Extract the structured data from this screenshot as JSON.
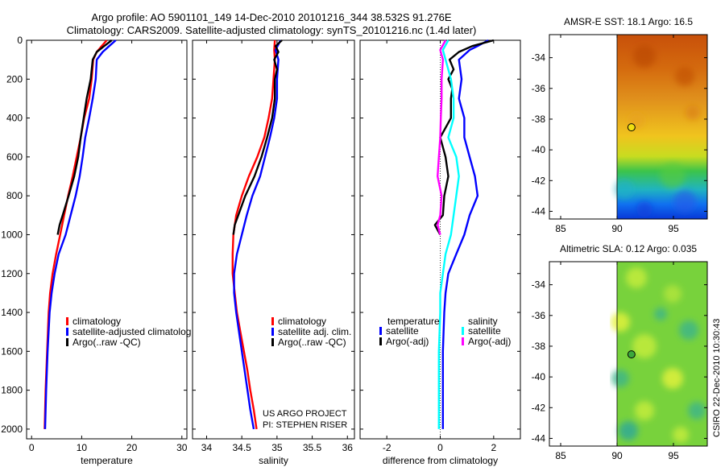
{
  "header": {
    "title_line1": "Argo profile: AO 5901101_149 14-Dec-2010 20101216_344 38.532S 91.276E",
    "title_line2": "Climatology: CARS2009. Satellite-adjusted climatology: synTS_20101216.nc (1.4d later)"
  },
  "credit": "CSIRO 22-Dec-2010 10:30:43",
  "project_text": [
    "US ARGO PROJECT",
    "PI: STEPHEN RISER"
  ],
  "colors": {
    "red": "#ff0000",
    "blue": "#0000ff",
    "black": "#000000",
    "cyan": "#00ffff",
    "magenta": "#ff00ff"
  },
  "chart_data": [
    {
      "type": "line",
      "xlabel": "temperature",
      "ylabel": "",
      "xlim": [
        -1,
        31
      ],
      "ylim": [
        0,
        2050
      ],
      "y_inverted": true,
      "xticks": [
        0,
        10,
        20,
        30
      ],
      "yticks": [
        0,
        200,
        400,
        600,
        800,
        1000,
        1200,
        1400,
        1600,
        1800,
        2000
      ],
      "legend": [
        "climatology",
        "satellite-adjusted climatolog",
        "Argo(..raw -QC)"
      ],
      "legend_colors": [
        "red",
        "blue",
        "black"
      ],
      "series": [
        {
          "name": "climatology",
          "color": "red",
          "points": [
            [
              15.0,
              0
            ],
            [
              14.0,
              30
            ],
            [
              13.0,
              60
            ],
            [
              12.3,
              100
            ],
            [
              12.0,
              200
            ],
            [
              11.5,
              300
            ],
            [
              10.5,
              400
            ],
            [
              9.8,
              500
            ],
            [
              9.0,
              600
            ],
            [
              8.2,
              700
            ],
            [
              7.3,
              800
            ],
            [
              6.5,
              900
            ],
            [
              5.7,
              1000
            ],
            [
              4.9,
              1100
            ],
            [
              4.2,
              1200
            ],
            [
              3.7,
              1300
            ],
            [
              3.4,
              1400
            ],
            [
              3.1,
              1600
            ],
            [
              2.8,
              1800
            ],
            [
              2.6,
              2000
            ]
          ]
        },
        {
          "name": "satellite-adjusted climatolog",
          "color": "blue",
          "points": [
            [
              16.8,
              0
            ],
            [
              15.5,
              30
            ],
            [
              14.2,
              60
            ],
            [
              13.0,
              100
            ],
            [
              12.8,
              200
            ],
            [
              12.2,
              300
            ],
            [
              11.5,
              400
            ],
            [
              10.7,
              500
            ],
            [
              10.2,
              600
            ],
            [
              9.6,
              700
            ],
            [
              8.8,
              800
            ],
            [
              7.8,
              900
            ],
            [
              6.8,
              1000
            ],
            [
              5.4,
              1100
            ],
            [
              4.6,
              1200
            ],
            [
              4.0,
              1300
            ],
            [
              3.6,
              1400
            ],
            [
              3.2,
              1600
            ],
            [
              2.9,
              1800
            ],
            [
              2.7,
              2000
            ]
          ]
        },
        {
          "name": "Argo(..raw -QC)",
          "color": "black",
          "points": [
            [
              16.0,
              0
            ],
            [
              14.5,
              30
            ],
            [
              13.0,
              60
            ],
            [
              12.2,
              100
            ],
            [
              11.8,
              200
            ],
            [
              11.0,
              300
            ],
            [
              10.4,
              400
            ],
            [
              9.8,
              500
            ],
            [
              9.3,
              600
            ],
            [
              8.5,
              700
            ],
            [
              7.4,
              800
            ],
            [
              6.2,
              900
            ],
            [
              5.6,
              950
            ],
            [
              5.2,
              1000
            ]
          ]
        }
      ]
    },
    {
      "type": "line",
      "xlabel": "salinity",
      "xlim": [
        33.8,
        36.1
      ],
      "ylim": [
        0,
        2050
      ],
      "y_inverted": true,
      "xticks": [
        34,
        34.5,
        35,
        35.5,
        36
      ],
      "legend": [
        "climatology",
        "satellite adj. clim.",
        "Argo(..raw -QC)"
      ],
      "legend_colors": [
        "red",
        "blue",
        "black"
      ],
      "series": [
        {
          "name": "climatology",
          "color": "red",
          "points": [
            [
              34.97,
              0
            ],
            [
              34.96,
              50
            ],
            [
              34.97,
              100
            ],
            [
              34.95,
              200
            ],
            [
              34.93,
              300
            ],
            [
              34.88,
              400
            ],
            [
              34.82,
              500
            ],
            [
              34.72,
              600
            ],
            [
              34.6,
              700
            ],
            [
              34.5,
              800
            ],
            [
              34.42,
              900
            ],
            [
              34.38,
              1000
            ],
            [
              34.37,
              1100
            ],
            [
              34.37,
              1200
            ],
            [
              34.4,
              1300
            ],
            [
              34.43,
              1400
            ],
            [
              34.48,
              1500
            ],
            [
              34.53,
              1600
            ],
            [
              34.58,
              1700
            ],
            [
              34.62,
              1800
            ],
            [
              34.67,
              1900
            ],
            [
              34.71,
              2000
            ]
          ]
        },
        {
          "name": "satellite adj. clim.",
          "color": "blue",
          "points": [
            [
              35.05,
              0
            ],
            [
              34.98,
              50
            ],
            [
              35.02,
              100
            ],
            [
              35.0,
              200
            ],
            [
              35.0,
              300
            ],
            [
              34.96,
              400
            ],
            [
              34.9,
              500
            ],
            [
              34.83,
              600
            ],
            [
              34.76,
              700
            ],
            [
              34.65,
              800
            ],
            [
              34.57,
              900
            ],
            [
              34.5,
              1000
            ],
            [
              34.43,
              1100
            ],
            [
              34.39,
              1200
            ],
            [
              34.39,
              1300
            ],
            [
              34.42,
              1400
            ],
            [
              34.46,
              1500
            ],
            [
              34.5,
              1600
            ],
            [
              34.54,
              1700
            ],
            [
              34.58,
              1800
            ],
            [
              34.62,
              1900
            ],
            [
              34.67,
              2000
            ]
          ]
        },
        {
          "name": "Argo(..raw -QC)",
          "color": "black",
          "points": [
            [
              35.07,
              0
            ],
            [
              34.98,
              30
            ],
            [
              35.02,
              60
            ],
            [
              34.96,
              100
            ],
            [
              35.0,
              150
            ],
            [
              34.97,
              200
            ],
            [
              34.97,
              300
            ],
            [
              34.93,
              400
            ],
            [
              34.86,
              500
            ],
            [
              34.78,
              600
            ],
            [
              34.68,
              700
            ],
            [
              34.55,
              800
            ],
            [
              34.45,
              900
            ],
            [
              34.4,
              950
            ],
            [
              34.38,
              1000
            ]
          ]
        }
      ]
    },
    {
      "type": "line",
      "xlabel": "difference from climatology",
      "xlim": [
        -3,
        3
      ],
      "ylim": [
        0,
        2050
      ],
      "y_inverted": true,
      "xticks": [
        -2,
        0,
        2
      ],
      "zero_line": "dotted",
      "legend_headers": [
        "temperature",
        "salinity"
      ],
      "legend": [
        "satellite",
        "Argo(-adj)",
        "satellite",
        "Argo(-adj)"
      ],
      "legend_colors": [
        "blue",
        "black",
        "cyan",
        "magenta"
      ],
      "series": [
        {
          "name": "temperature satellite",
          "color": "blue",
          "points": [
            [
              1.8,
              0
            ],
            [
              1.4,
              30
            ],
            [
              1.1,
              50
            ],
            [
              0.7,
              100
            ],
            [
              0.8,
              200
            ],
            [
              0.7,
              300
            ],
            [
              0.9,
              400
            ],
            [
              0.9,
              500
            ],
            [
              1.1,
              600
            ],
            [
              1.3,
              700
            ],
            [
              1.4,
              800
            ],
            [
              1.1,
              900
            ],
            [
              0.9,
              1000
            ],
            [
              0.6,
              1100
            ],
            [
              0.3,
              1200
            ],
            [
              0.2,
              1300
            ],
            [
              0.15,
              1400
            ],
            [
              0.1,
              1600
            ],
            [
              0.1,
              1800
            ],
            [
              0.1,
              2000
            ]
          ]
        },
        {
          "name": "temperature Argo(-adj)",
          "color": "black",
          "points": [
            [
              2.0,
              0
            ],
            [
              1.2,
              30
            ],
            [
              0.7,
              60
            ],
            [
              0.35,
              100
            ],
            [
              0.5,
              150
            ],
            [
              0.3,
              200
            ],
            [
              0.45,
              250
            ],
            [
              0.4,
              300
            ],
            [
              0.4,
              400
            ],
            [
              0.0,
              500
            ],
            [
              0.2,
              600
            ],
            [
              0.3,
              700
            ],
            [
              0.15,
              800
            ],
            [
              0.1,
              900
            ],
            [
              -0.2,
              950
            ],
            [
              0.0,
              1000
            ]
          ]
        },
        {
          "name": "salinity satellite",
          "color": "cyan",
          "points": [
            [
              0.3,
              0
            ],
            [
              0.1,
              50
            ],
            [
              0.2,
              100
            ],
            [
              0.4,
              200
            ],
            [
              0.5,
              300
            ],
            [
              0.5,
              400
            ],
            [
              0.3,
              500
            ],
            [
              0.6,
              600
            ],
            [
              0.7,
              700
            ],
            [
              0.6,
              800
            ],
            [
              0.5,
              900
            ],
            [
              0.4,
              1000
            ],
            [
              0.2,
              1100
            ],
            [
              0.1,
              1200
            ],
            [
              0.0,
              1300
            ],
            [
              0.0,
              1400
            ],
            [
              -0.05,
              1600
            ],
            [
              -0.05,
              1800
            ],
            [
              -0.05,
              2000
            ]
          ]
        },
        {
          "name": "salinity Argo(-adj)",
          "color": "magenta",
          "points": [
            [
              0.2,
              0
            ],
            [
              0.0,
              50
            ],
            [
              0.1,
              100
            ],
            [
              0.05,
              200
            ],
            [
              0.05,
              300
            ],
            [
              0.02,
              400
            ],
            [
              0.0,
              500
            ],
            [
              -0.05,
              600
            ],
            [
              -0.1,
              700
            ],
            [
              0.05,
              800
            ],
            [
              0.0,
              900
            ],
            [
              -0.1,
              950
            ],
            [
              0.0,
              1000
            ]
          ]
        }
      ]
    },
    {
      "type": "heatmap",
      "title": "AMSR-E SST: 18.1 Argo: 16.5",
      "xlim": [
        84,
        98
      ],
      "ylim": [
        -44.5,
        -32.5
      ],
      "xticks": [
        85,
        90,
        95
      ],
      "yticks": [
        -34,
        -36,
        -38,
        -40,
        -42,
        -44
      ],
      "data_x_start": 90,
      "marker": [
        91.276,
        -38.532
      ]
    },
    {
      "type": "heatmap",
      "title": "Altimetric SLA: 0.12 Argo: 0.035",
      "xlim": [
        84,
        98
      ],
      "ylim": [
        -44.5,
        -32.5
      ],
      "xticks": [
        85,
        90,
        95
      ],
      "yticks": [
        -34,
        -36,
        -38,
        -40,
        -42,
        -44
      ],
      "data_x_start": 90,
      "marker": [
        91.276,
        -38.532
      ]
    }
  ]
}
